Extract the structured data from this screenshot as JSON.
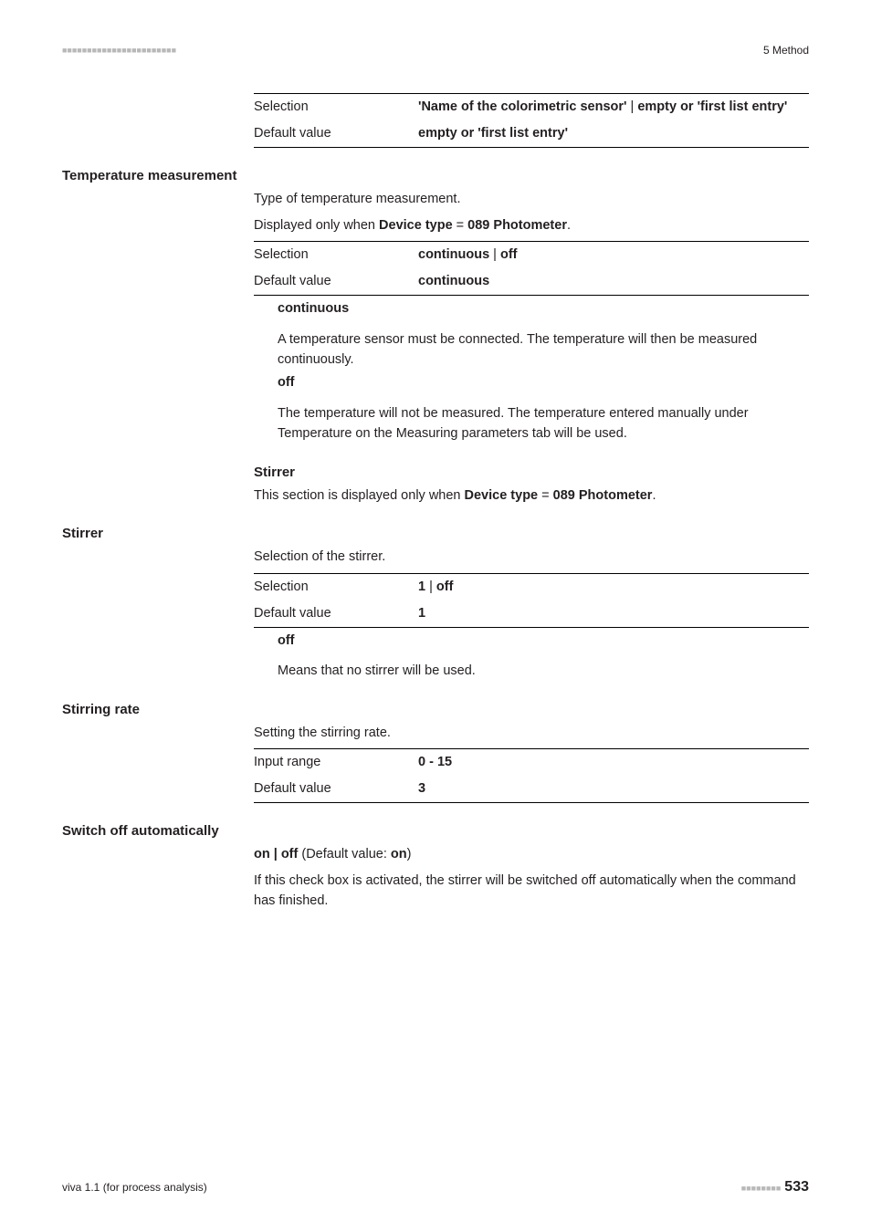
{
  "header": {
    "dashes": "■■■■■■■■■■■■■■■■■■■■■■■",
    "right": "5 Method"
  },
  "top_table": {
    "rows": [
      {
        "label": "Selection",
        "value_b1": "'Name of the colorimetric sensor'",
        "sep": " | ",
        "value_b2": "empty or 'first list entry'"
      },
      {
        "label": "Default value",
        "value_b1": "empty or 'first list entry'",
        "sep": "",
        "value_b2": ""
      }
    ]
  },
  "temp_meas": {
    "heading": "Temperature measurement",
    "intro": "Type of temperature measurement.",
    "displayed_prefix": "Displayed only when ",
    "displayed_b1": "Device type",
    "displayed_mid": " = ",
    "displayed_b2": "089 Photometer",
    "displayed_suffix": ".",
    "table": {
      "rows": [
        {
          "label": "Selection",
          "v1": "continuous",
          "sep": " | ",
          "v2": "off"
        },
        {
          "label": "Default value",
          "v1": "continuous",
          "sep": "",
          "v2": ""
        }
      ]
    },
    "defs": [
      {
        "term": "continuous",
        "text": "A temperature sensor must be connected. The temperature will then be measured continuously."
      },
      {
        "term": "off",
        "text": "The temperature will not be measured. The temperature entered manually under Temperature on the Measuring parameters tab will be used."
      }
    ],
    "stirrer_hd": "Stirrer",
    "stirrer_line_prefix": "This section is displayed only when ",
    "stirrer_b1": "Device type",
    "stirrer_mid": " = ",
    "stirrer_b2": "089 Photometer",
    "stirrer_suffix": "."
  },
  "stirrer": {
    "heading": "Stirrer",
    "intro": "Selection of the stirrer.",
    "table": {
      "rows": [
        {
          "label": "Selection",
          "v1": "1",
          "sep": " | ",
          "v2": "off"
        },
        {
          "label": "Default value",
          "v1": "1",
          "sep": "",
          "v2": ""
        }
      ]
    },
    "def_term": "off",
    "def_text": "Means that no stirrer will be used."
  },
  "stirring_rate": {
    "heading": "Stirring rate",
    "intro": "Setting the stirring rate.",
    "table": {
      "rows": [
        {
          "label": "Input range",
          "v1": "0 - 15"
        },
        {
          "label": "Default value",
          "v1": "3"
        }
      ]
    }
  },
  "switch_off": {
    "heading": "Switch off automatically",
    "line_b": "on | off",
    "line_plain1": " (Default value: ",
    "line_b2": "on",
    "line_plain2": ")",
    "text": "If this check box is activated, the stirrer will be switched off automatically when the command has finished."
  },
  "footer": {
    "left": "viva 1.1 (for process analysis)",
    "dashes": "■■■■■■■■",
    "page": "533"
  }
}
